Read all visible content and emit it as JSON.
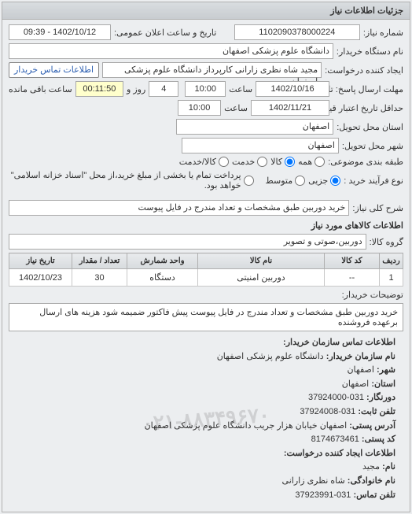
{
  "panel": {
    "title": "جزئیات اطلاعات نیاز"
  },
  "header": {
    "req_no_label": "شماره نیاز:",
    "req_no": "1102090378000224",
    "pub_datetime_label": "تاریخ و ساعت اعلان عمومی:",
    "pub_datetime": "1402/10/12 - 09:39",
    "buyer_org_label": "نام دستگاه خریدار:",
    "buyer_org": "دانشگاه علوم پزشکی اصفهان",
    "requester_label": "ایجاد کننده درخواست:",
    "requester": "مجید شاه نظری زارانی کارپرداز دانشگاه علوم پزشکی اصفهان",
    "contact_btn": "اطلاعات تماس خریدار",
    "resp_deadline_label": "مهلت ارسال پاسخ: تا تاریخ:",
    "resp_date": "1402/10/16",
    "resp_time_label": "ساعت",
    "resp_time": "10:00",
    "resp_remain_days": "4",
    "resp_remain_days_label": "روز و",
    "resp_remain_time": "00:11:50",
    "resp_remain_suffix": "ساعت باقی مانده",
    "validity_label": "حداقل تاریخ اعتبار قیمت: تا تاریخ:",
    "validity_date": "1402/11/21",
    "validity_time_label": "ساعت",
    "validity_time": "10:00",
    "province_label": "استان محل تحویل:",
    "province": "اصفهان",
    "city_label": "شهر محل تحویل:",
    "city": "اصفهان",
    "category_label": "طبقه بندی موضوعی:",
    "cat_all": "همه",
    "cat_goods": "کالا",
    "cat_service": "خدمت",
    "cat_goods_service": "کالا/خدمت",
    "proc_type_label": "نوع فرآیند خرید :",
    "proc_minor": "جزیی",
    "proc_medium": "متوسط",
    "proc_note": "پرداخت تمام یا بخشی از مبلغ خرید،از محل \"اسناد خزانه اسلامی\" خواهد بود.",
    "need_desc_label": "شرح کلی نیاز:",
    "need_desc": "خرید دوربین طبق مشخصات و تعداد مندرج در فایل پیوست"
  },
  "goods": {
    "section_title": "اطلاعات کالاهای مورد نیاز",
    "group_label": "گروه کالا:",
    "group_value": "دوربین،صوتی و تصویر",
    "columns": [
      "ردیف",
      "کد کالا",
      "نام کالا",
      "واحد شمارش",
      "تعداد / مقدار",
      "تاریخ نیاز"
    ],
    "rows": [
      [
        "1",
        "--",
        "دوربین امنیتی",
        "دستگاه",
        "30",
        "1402/10/23"
      ]
    ],
    "buyer_notes_label": "توضیحات خریدار:",
    "buyer_notes": "خرید دوربین طبق مشخصات و تعداد مندرج در فایل پیوست پیش فاکتور ضمیمه شود هزینه های ارسال برعهده فروشنده"
  },
  "contact": {
    "section_title": "اطلاعات تماس سازمان خریدار:",
    "org_name_label": "نام سازمان خریدار:",
    "org_name": "دانشگاه علوم پزشکی اصفهان",
    "city_label": "شهر:",
    "city": "اصفهان",
    "province_label": "استان:",
    "province": "اصفهان",
    "fax_label": "دورنگار:",
    "fax": "031-37924000",
    "phone_label": "تلفن ثابت:",
    "phone": "031-37924008",
    "addr_label": "آدرس پستی:",
    "addr": "اصفهان خیابان هزار جریب دانشگاه علوم پزشکی اصفهان",
    "postal_label": "کد پستی:",
    "postal": "8174673461",
    "req_creator_title": "اطلاعات ایجاد کننده درخواست:",
    "name_label": "نام:",
    "name": "مجید",
    "family_label": "نام خانوادگی:",
    "family": "شاه نظری زارانی",
    "req_phone_label": "تلفن تماس:",
    "req_phone": "031-37923991"
  }
}
